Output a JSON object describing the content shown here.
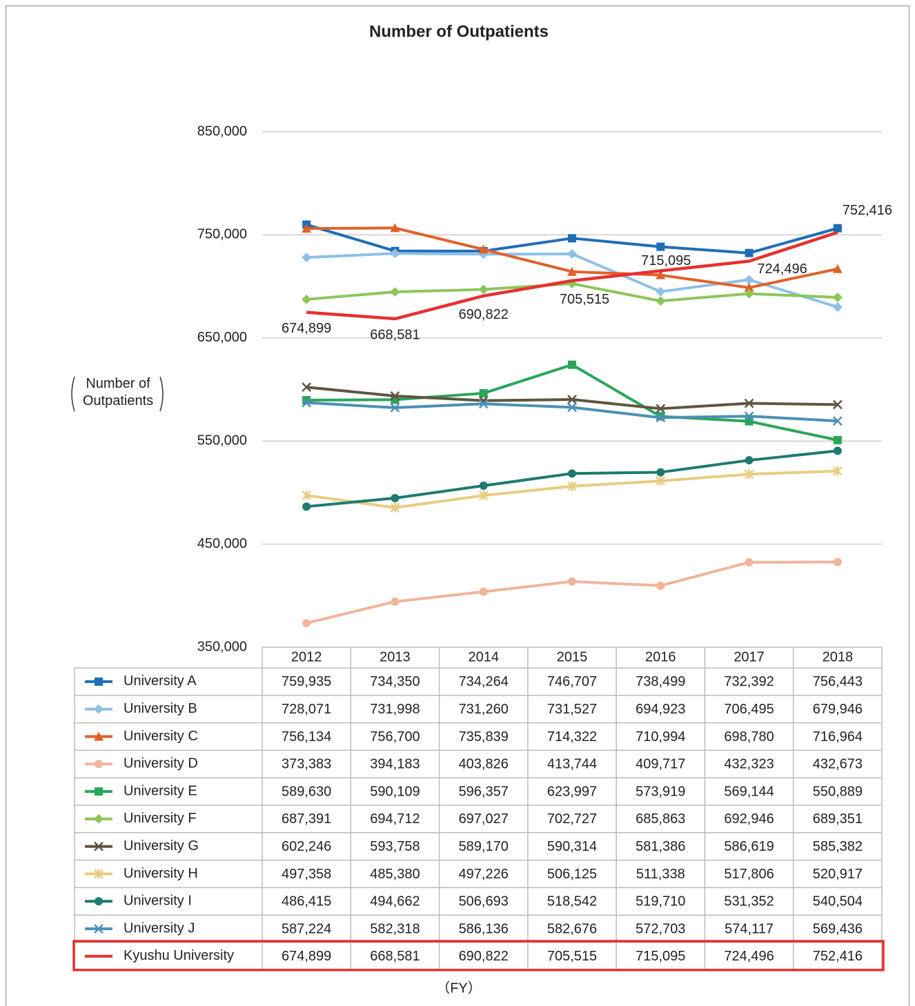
{
  "chart_data": {
    "type": "line",
    "title": "Number of Outpatients",
    "y_label": "Number of Outpatients",
    "x_label": "（FY）",
    "categories": [
      "2012",
      "2013",
      "2014",
      "2015",
      "2016",
      "2017",
      "2018"
    ],
    "ylim": [
      350000,
      850000
    ],
    "yticks": [
      {
        "value": 350000,
        "label": "350,000"
      },
      {
        "value": 450000,
        "label": "450,000"
      },
      {
        "value": 550000,
        "label": "550,000"
      },
      {
        "value": 650000,
        "label": "650,000"
      },
      {
        "value": 750000,
        "label": "750,000"
      },
      {
        "value": 850000,
        "label": "850,000"
      }
    ],
    "grid": true,
    "series": [
      {
        "name": "University A",
        "color": "#1f6db5",
        "marker": "square",
        "values": [
          759935,
          734350,
          734264,
          746707,
          738499,
          732392,
          756443
        ],
        "value_labels": [
          "759,935",
          "734,350",
          "734,264",
          "746,707",
          "738,499",
          "732,392",
          "756,443"
        ]
      },
      {
        "name": "University B",
        "color": "#8ec0e8",
        "marker": "diamond",
        "values": [
          728071,
          731998,
          731260,
          731527,
          694923,
          706495,
          679946
        ],
        "value_labels": [
          "728,071",
          "731,998",
          "731,260",
          "731,527",
          "694,923",
          "706,495",
          "679,946"
        ]
      },
      {
        "name": "University C",
        "color": "#e0622a",
        "marker": "triangle",
        "values": [
          756134,
          756700,
          735839,
          714322,
          710994,
          698780,
          716964
        ],
        "value_labels": [
          "756,134",
          "756,700",
          "735,839",
          "714,322",
          "710,994",
          "698,780",
          "716,964"
        ]
      },
      {
        "name": "University D",
        "color": "#f0b59a",
        "marker": "circle",
        "values": [
          373383,
          394183,
          403826,
          413744,
          409717,
          432323,
          432673
        ],
        "value_labels": [
          "373,383",
          "394,183",
          "403,826",
          "413,744",
          "409,717",
          "432,323",
          "432,673"
        ]
      },
      {
        "name": "University E",
        "color": "#2aa55a",
        "marker": "square",
        "values": [
          589630,
          590109,
          596357,
          623997,
          573919,
          569144,
          550889
        ],
        "value_labels": [
          "589,630",
          "590,109",
          "596,357",
          "623,997",
          "573,919",
          "569,144",
          "550,889"
        ]
      },
      {
        "name": "University F",
        "color": "#8cc65a",
        "marker": "diamond",
        "values": [
          687391,
          694712,
          697027,
          702727,
          685863,
          692946,
          689351
        ],
        "value_labels": [
          "687,391",
          "694,712",
          "697,027",
          "702,727",
          "685,863",
          "692,946",
          "689,351"
        ]
      },
      {
        "name": "University G",
        "color": "#5e5640",
        "marker": "x",
        "values": [
          602246,
          593758,
          589170,
          590314,
          581386,
          586619,
          585382
        ],
        "value_labels": [
          "602,246",
          "593,758",
          "589,170",
          "590,314",
          "581,386",
          "586,619",
          "585,382"
        ]
      },
      {
        "name": "University H",
        "color": "#e8cc80",
        "marker": "asterisk",
        "values": [
          497358,
          485380,
          497226,
          506125,
          511338,
          517806,
          520917
        ],
        "value_labels": [
          "497,358",
          "485,380",
          "497,226",
          "506,125",
          "511,338",
          "517,806",
          "520,917"
        ]
      },
      {
        "name": "University I",
        "color": "#1e7a6e",
        "marker": "circle",
        "values": [
          486415,
          494662,
          506693,
          518542,
          519710,
          531352,
          540504
        ],
        "value_labels": [
          "486,415",
          "494,662",
          "506,693",
          "518,542",
          "519,710",
          "531,352",
          "540,504"
        ]
      },
      {
        "name": "University J",
        "color": "#4a90b5",
        "marker": "x",
        "values": [
          587224,
          582318,
          586136,
          582676,
          572703,
          574117,
          569436
        ],
        "value_labels": [
          "587,224",
          "582,318",
          "586,136",
          "582,676",
          "572,703",
          "574,117",
          "569,436"
        ]
      },
      {
        "name": "Kyushu University",
        "color": "#e83030",
        "marker": "none",
        "data_labels": true,
        "highlight": true,
        "values": [
          674899,
          668581,
          690822,
          705515,
          715095,
          724496,
          752416
        ],
        "value_labels": [
          "674,899",
          "668,581",
          "690,822",
          "705,515",
          "715,095",
          "724,496",
          "752,416"
        ]
      }
    ]
  }
}
